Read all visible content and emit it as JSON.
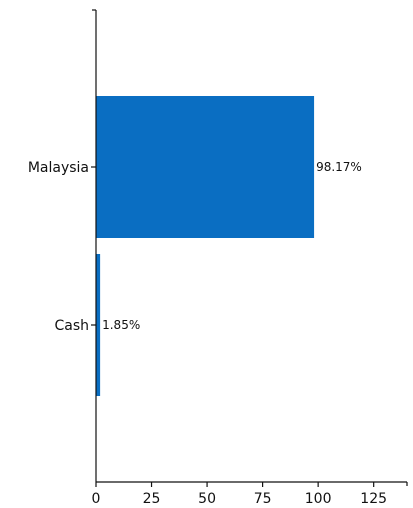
{
  "chart_data": {
    "type": "bar",
    "orientation": "horizontal",
    "title": "",
    "xlabel": "",
    "ylabel": "",
    "categories": [
      "Malaysia",
      "Cash"
    ],
    "values": [
      98.17,
      1.85
    ],
    "data_labels": [
      "98.17%",
      "1.85%"
    ],
    "xlim": [
      0,
      140
    ],
    "x_ticks": [
      0,
      25,
      50,
      75,
      100,
      125
    ],
    "grid": false,
    "legend": "none",
    "bar_color": "#0A6EC2"
  }
}
